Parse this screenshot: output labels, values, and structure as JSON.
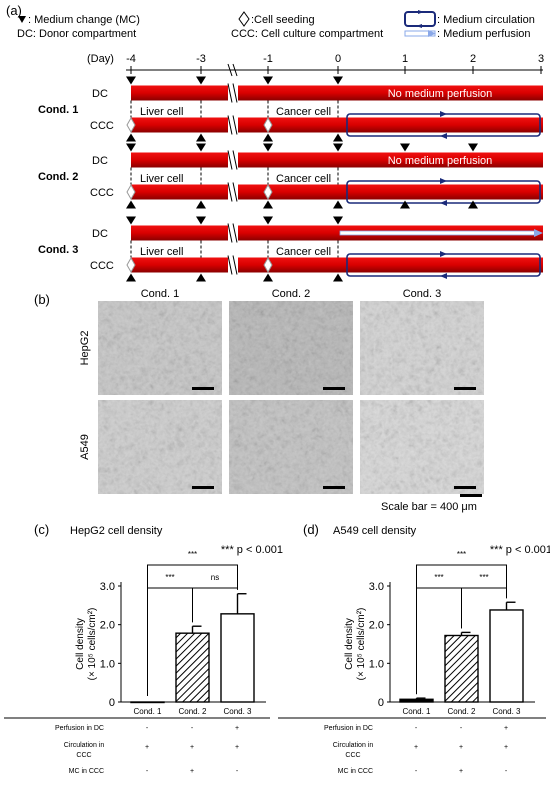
{
  "panel_labels": {
    "a": "(a)",
    "b": "(b)",
    "c": "(c)",
    "d": "(d)"
  },
  "legend": {
    "medium_change": ": Medium change (MC)",
    "donor_compartment": "DC: Donor compartment",
    "cell_seeding": ":Cell seeding",
    "ccc": "CCC: Cell culture compartment",
    "medium_circulation": ": Medium circulation",
    "medium_perfusion": ": Medium perfusion"
  },
  "timeline": {
    "day_label": "(Day)",
    "ticks": [
      "-4",
      "-3",
      "-1",
      "0",
      "1",
      "2",
      "3"
    ],
    "conditions": [
      {
        "label": "Cond. 1",
        "rows": [
          "DC",
          "CCC"
        ],
        "liver": "Liver cell",
        "cancer": "Cancer cell",
        "note": "No medium perfusion"
      },
      {
        "label": "Cond. 2",
        "rows": [
          "DC",
          "CCC"
        ],
        "liver": "Liver cell",
        "cancer": "Cancer cell",
        "note": "No medium perfusion"
      },
      {
        "label": "Cond. 3",
        "rows": [
          "DC",
          "CCC"
        ],
        "liver": "Liver cell",
        "cancer": "Cancer cell",
        "note": ""
      }
    ]
  },
  "micrographs": {
    "columns": [
      "Cond. 1",
      "Cond. 2",
      "Cond. 3"
    ],
    "rows": [
      "HepG2",
      "A549"
    ],
    "scale_bar": "Scale bar = 400 μm"
  },
  "chart_data": [
    {
      "type": "bar",
      "title": "HepG2 cell density",
      "ylabel_line1": "Cell density",
      "ylabel_line2": "(× 10⁵ cells/cm²)",
      "categories": [
        "Cond. 1",
        "Cond. 2",
        "Cond. 3"
      ],
      "values": [
        0,
        1.78,
        2.28
      ],
      "errors": [
        0,
        0.18,
        0.52
      ],
      "yticks": [
        "0",
        "1.0",
        "2.0",
        "3.0"
      ],
      "ylim": [
        0,
        3.0
      ],
      "pvalue_note": "*** p < 0.001",
      "significance": [
        {
          "pair": [
            1,
            2
          ],
          "label": "***"
        },
        {
          "pair": [
            2,
            3
          ],
          "label": "ns"
        },
        {
          "pair": [
            1,
            3
          ],
          "label": "***"
        }
      ]
    },
    {
      "type": "bar",
      "title": "A549 cell density",
      "ylabel_line1": "Cell density",
      "ylabel_line2": "(× 10⁵ cells/cm²)",
      "categories": [
        "Cond. 1",
        "Cond. 2",
        "Cond. 3"
      ],
      "values": [
        0.07,
        1.72,
        2.38
      ],
      "errors": [
        0.03,
        0.08,
        0.2
      ],
      "yticks": [
        "0",
        "1.0",
        "2.0",
        "3.0"
      ],
      "ylim": [
        0,
        3.0
      ],
      "pvalue_note": "*** p < 0.001",
      "significance": [
        {
          "pair": [
            1,
            2
          ],
          "label": "***"
        },
        {
          "pair": [
            2,
            3
          ],
          "label": "***"
        },
        {
          "pair": [
            1,
            3
          ],
          "label": "***"
        }
      ]
    }
  ],
  "condition_table": {
    "rows": [
      {
        "label": "Perfusion in DC",
        "values": [
          "-",
          "-",
          "+"
        ]
      },
      {
        "label": "Circulation in CCC",
        "values": [
          "+",
          "+",
          "+"
        ]
      },
      {
        "label": "MC in CCC",
        "values": [
          "-",
          "+",
          "-"
        ]
      }
    ]
  },
  "colors": {
    "bar_red": "#e00000",
    "bar_dark": "#7a0000",
    "circulation": "#1a2a7a",
    "perfusion": "#8aa8e8"
  }
}
